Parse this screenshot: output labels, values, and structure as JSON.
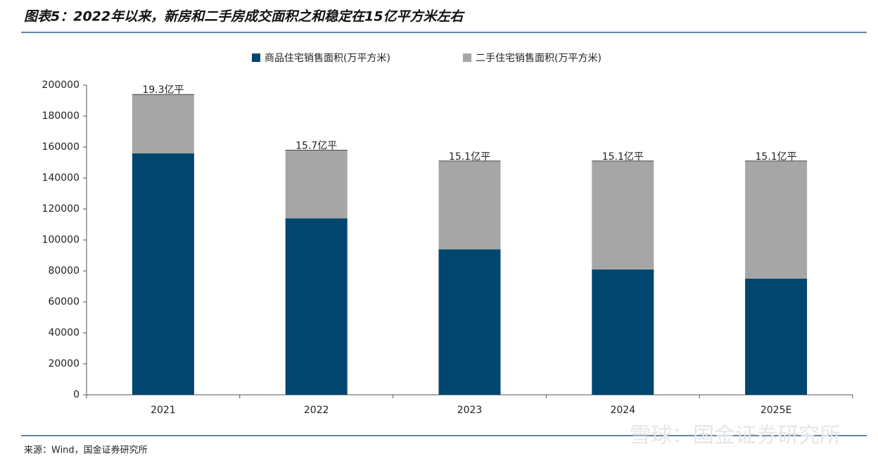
{
  "chart_data": {
    "type": "stacked_bar",
    "title": "图表5：2022年以来，新房和二手房成交面积之和稳定在15亿平方米左右",
    "source": "来源：Wind，国金证券研究所",
    "watermark": "雪球：国金证券研究所",
    "categories": [
      "2021",
      "2022",
      "2023",
      "2024",
      "2025E"
    ],
    "series": [
      {
        "name": "商品住宅销售面积(万平方米)",
        "color": "#00466e",
        "values": [
          156000,
          114000,
          94000,
          81000,
          75000
        ]
      },
      {
        "name": "二手住宅销售面积(万平方米)",
        "color": "#a6a6a6",
        "values": [
          38000,
          44000,
          57000,
          70000,
          76000
        ]
      }
    ],
    "annotations": [
      "19.3亿平",
      "15.7亿平",
      "15.1亿平",
      "15.1亿平",
      "15.1亿平"
    ],
    "ylim": [
      0,
      200000
    ],
    "yticks": [
      0,
      20000,
      40000,
      60000,
      80000,
      100000,
      120000,
      140000,
      160000,
      180000,
      200000
    ],
    "grid": false
  }
}
